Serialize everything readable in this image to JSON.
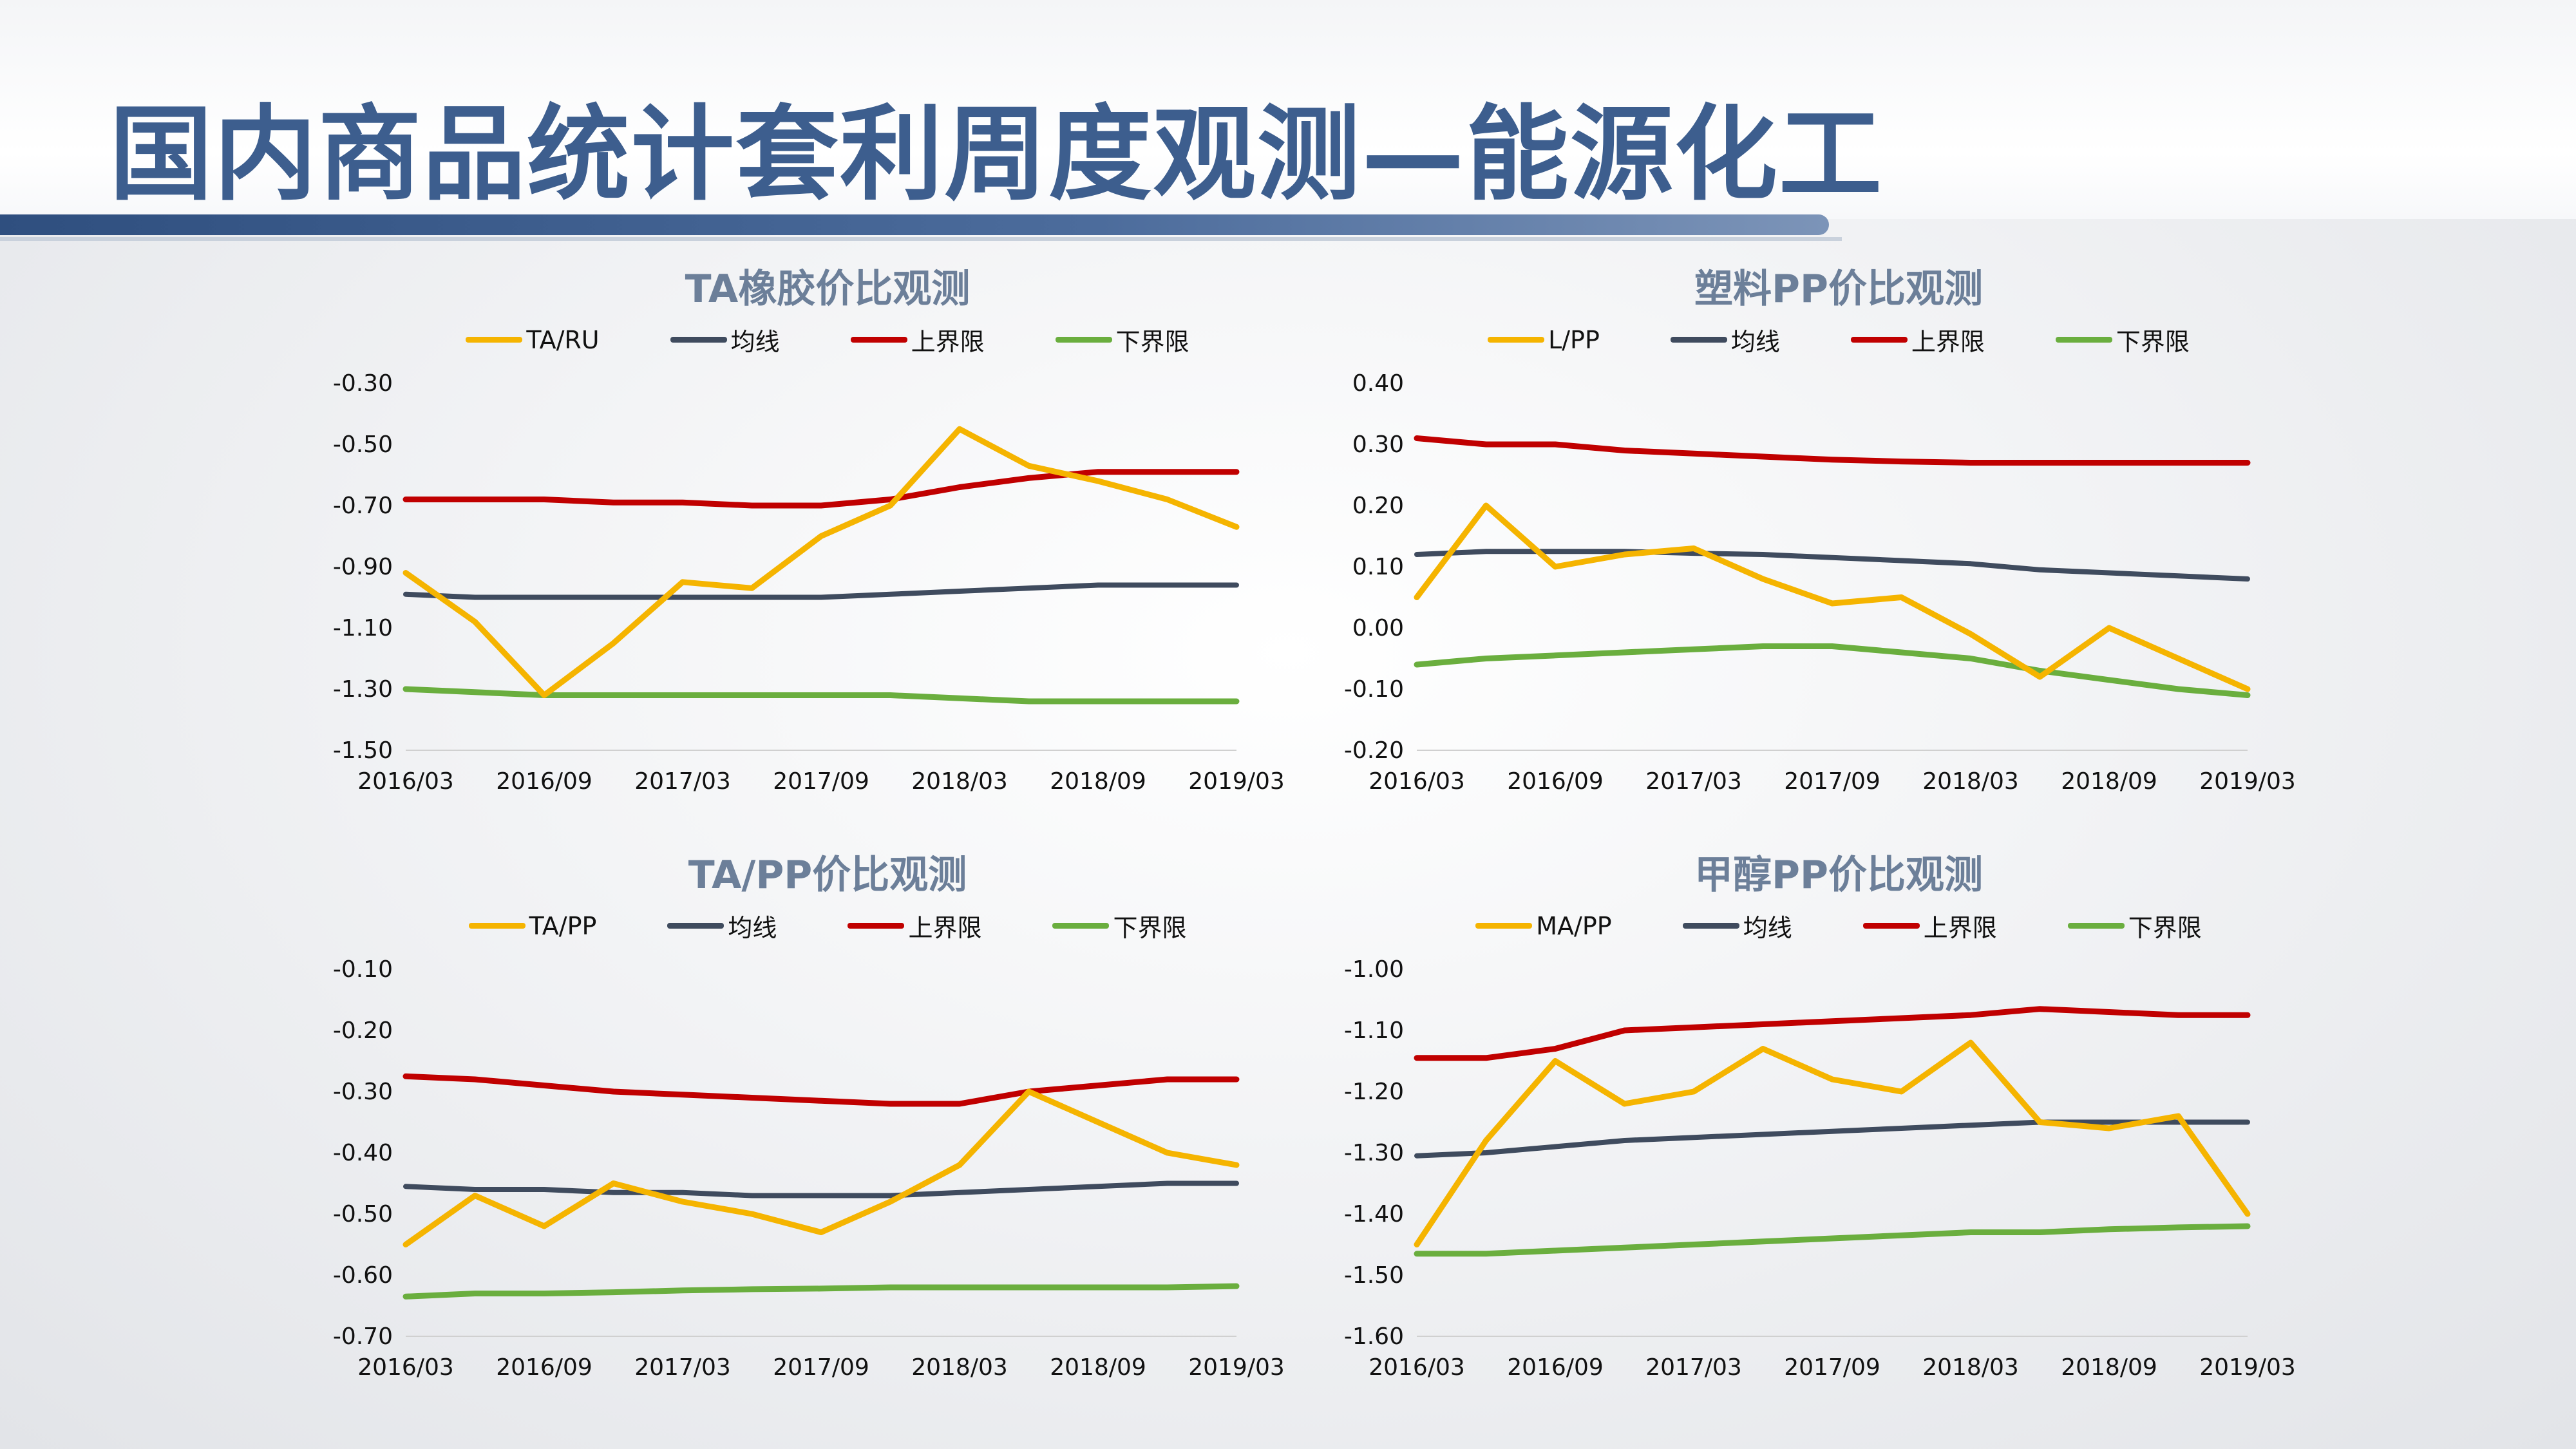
{
  "page": {
    "title": "国内商品统计套利周度观测—能源化工"
  },
  "colors": {
    "title": "#3d5e8e",
    "ratio": "#f5b400",
    "mean": "#3f4b5e",
    "upper": "#c00000",
    "lower": "#6aae3e"
  },
  "chart_data": [
    {
      "type": "line",
      "title": "TA橡胶价比观测",
      "legend": [
        "TA/RU",
        "均线",
        "上界限",
        "下界限"
      ],
      "x_ticks": [
        "2016/03",
        "2016/09",
        "2017/03",
        "2017/09",
        "2018/03",
        "2018/09",
        "2019/03"
      ],
      "y_ticks": [
        "-0.30",
        "-0.50",
        "-0.70",
        "-0.90",
        "-1.10",
        "-1.30",
        "-1.50"
      ],
      "ylim": [
        -1.5,
        -0.3
      ],
      "x": [
        "2016/03",
        "2016/06",
        "2016/09",
        "2016/12",
        "2017/03",
        "2017/06",
        "2017/09",
        "2017/12",
        "2018/03",
        "2018/06",
        "2018/09",
        "2018/12",
        "2019/03"
      ],
      "series": [
        {
          "name": "TA/RU",
          "values": [
            -0.92,
            -1.08,
            -1.32,
            -1.15,
            -0.95,
            -0.97,
            -0.8,
            -0.7,
            -0.45,
            -0.57,
            -0.62,
            -0.68,
            -0.77
          ]
        },
        {
          "name": "均线",
          "values": [
            -0.99,
            -1.0,
            -1.0,
            -1.0,
            -1.0,
            -1.0,
            -1.0,
            -0.99,
            -0.98,
            -0.97,
            -0.96,
            -0.96,
            -0.96
          ]
        },
        {
          "name": "上界限",
          "values": [
            -0.68,
            -0.68,
            -0.68,
            -0.69,
            -0.69,
            -0.7,
            -0.7,
            -0.68,
            -0.64,
            -0.61,
            -0.59,
            -0.59,
            -0.59
          ]
        },
        {
          "name": "下界限",
          "values": [
            -1.3,
            -1.31,
            -1.32,
            -1.32,
            -1.32,
            -1.32,
            -1.32,
            -1.32,
            -1.33,
            -1.34,
            -1.34,
            -1.34,
            -1.34
          ]
        }
      ]
    },
    {
      "type": "line",
      "title": "塑料PP价比观测",
      "legend": [
        "L/PP",
        "均线",
        "上界限",
        "下界限"
      ],
      "x_ticks": [
        "2016/03",
        "2016/09",
        "2017/03",
        "2017/09",
        "2018/03",
        "2018/09",
        "2019/03"
      ],
      "y_ticks": [
        "0.40",
        "0.30",
        "0.20",
        "0.10",
        "0.00",
        "-0.10",
        "-0.20"
      ],
      "ylim": [
        -0.2,
        0.4
      ],
      "x": [
        "2016/03",
        "2016/06",
        "2016/09",
        "2016/12",
        "2017/03",
        "2017/06",
        "2017/09",
        "2017/12",
        "2018/03",
        "2018/06",
        "2018/09",
        "2018/12",
        "2019/03"
      ],
      "series": [
        {
          "name": "L/PP",
          "values": [
            0.05,
            0.2,
            0.1,
            0.12,
            0.13,
            0.08,
            0.04,
            0.05,
            -0.01,
            -0.08,
            0.0,
            -0.05,
            -0.1
          ]
        },
        {
          "name": "均线",
          "values": [
            0.12,
            0.125,
            0.125,
            0.125,
            0.122,
            0.12,
            0.115,
            0.11,
            0.105,
            0.095,
            0.09,
            0.085,
            0.08
          ]
        },
        {
          "name": "上界限",
          "values": [
            0.31,
            0.3,
            0.3,
            0.29,
            0.285,
            0.28,
            0.275,
            0.272,
            0.27,
            0.27,
            0.27,
            0.27,
            0.27
          ]
        },
        {
          "name": "下界限",
          "values": [
            -0.06,
            -0.05,
            -0.045,
            -0.04,
            -0.035,
            -0.03,
            -0.03,
            -0.04,
            -0.05,
            -0.07,
            -0.085,
            -0.1,
            -0.11
          ]
        }
      ]
    },
    {
      "type": "line",
      "title": "TA/PP价比观测",
      "legend": [
        "TA/PP",
        "均线",
        "上界限",
        "下界限"
      ],
      "x_ticks": [
        "2016/03",
        "2016/09",
        "2017/03",
        "2017/09",
        "2018/03",
        "2018/09",
        "2019/03"
      ],
      "y_ticks": [
        "-0.10",
        "-0.20",
        "-0.30",
        "-0.40",
        "-0.50",
        "-0.60",
        "-0.70"
      ],
      "ylim": [
        -0.7,
        -0.1
      ],
      "x": [
        "2016/03",
        "2016/06",
        "2016/09",
        "2016/12",
        "2017/03",
        "2017/06",
        "2017/09",
        "2017/12",
        "2018/03",
        "2018/06",
        "2018/09",
        "2018/12",
        "2019/03"
      ],
      "series": [
        {
          "name": "TA/PP",
          "values": [
            -0.55,
            -0.47,
            -0.52,
            -0.45,
            -0.48,
            -0.5,
            -0.53,
            -0.48,
            -0.42,
            -0.3,
            -0.35,
            -0.4,
            -0.42
          ]
        },
        {
          "name": "均线",
          "values": [
            -0.455,
            -0.46,
            -0.46,
            -0.465,
            -0.465,
            -0.47,
            -0.47,
            -0.47,
            -0.465,
            -0.46,
            -0.455,
            -0.45,
            -0.45
          ]
        },
        {
          "name": "上界限",
          "values": [
            -0.275,
            -0.28,
            -0.29,
            -0.3,
            -0.305,
            -0.31,
            -0.315,
            -0.32,
            -0.32,
            -0.3,
            -0.29,
            -0.28,
            -0.28
          ]
        },
        {
          "name": "下界限",
          "values": [
            -0.635,
            -0.63,
            -0.63,
            -0.628,
            -0.625,
            -0.623,
            -0.622,
            -0.62,
            -0.62,
            -0.62,
            -0.62,
            -0.62,
            -0.618
          ]
        }
      ]
    },
    {
      "type": "line",
      "title": "甲醇PP价比观测",
      "legend": [
        "MA/PP",
        "均线",
        "上界限",
        "下界限"
      ],
      "x_ticks": [
        "2016/03",
        "2016/09",
        "2017/03",
        "2017/09",
        "2018/03",
        "2018/09",
        "2019/03"
      ],
      "y_ticks": [
        "-1.00",
        "-1.10",
        "-1.20",
        "-1.30",
        "-1.40",
        "-1.50",
        "-1.60"
      ],
      "ylim": [
        -1.6,
        -1.0
      ],
      "x": [
        "2016/03",
        "2016/06",
        "2016/09",
        "2016/12",
        "2017/03",
        "2017/06",
        "2017/09",
        "2017/12",
        "2018/03",
        "2018/06",
        "2018/09",
        "2018/12",
        "2019/03"
      ],
      "series": [
        {
          "name": "MA/PP",
          "values": [
            -1.45,
            -1.28,
            -1.15,
            -1.22,
            -1.2,
            -1.13,
            -1.18,
            -1.2,
            -1.12,
            -1.25,
            -1.26,
            -1.24,
            -1.4
          ]
        },
        {
          "name": "均线",
          "values": [
            -1.305,
            -1.3,
            -1.29,
            -1.28,
            -1.275,
            -1.27,
            -1.265,
            -1.26,
            -1.255,
            -1.25,
            -1.25,
            -1.25,
            -1.25
          ]
        },
        {
          "name": "上界限",
          "values": [
            -1.145,
            -1.145,
            -1.13,
            -1.1,
            -1.095,
            -1.09,
            -1.085,
            -1.08,
            -1.075,
            -1.065,
            -1.07,
            -1.075,
            -1.075
          ]
        },
        {
          "name": "下界限",
          "values": [
            -1.465,
            -1.465,
            -1.46,
            -1.455,
            -1.45,
            -1.445,
            -1.44,
            -1.435,
            -1.43,
            -1.43,
            -1.425,
            -1.422,
            -1.42
          ]
        }
      ]
    }
  ]
}
